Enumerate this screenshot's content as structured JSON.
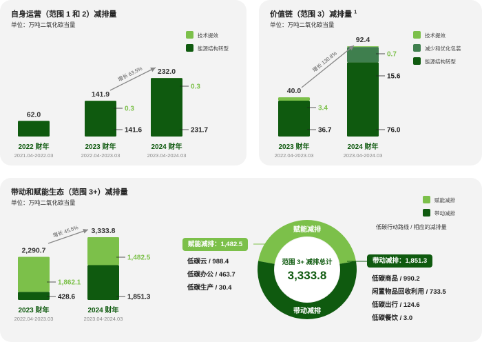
{
  "colors": {
    "dark_green": "#0f5a0f",
    "mid_green": "#3f7f4e",
    "light_green": "#7cc04a",
    "card_bg": "#f3f3f3",
    "arrow": "#888888"
  },
  "card1": {
    "title": "自身运营（范围 1 和 2）减排量",
    "unit": "单位：万吨二氧化碳当量",
    "legend": [
      {
        "label": "技术提效",
        "color": "#7cc04a"
      },
      {
        "label": "能源结构转型",
        "color": "#0f5a0f"
      }
    ],
    "growth_label": "增长 63.5%"
  },
  "card2": {
    "title": "价值链（范围 3）减排量",
    "title_sup": "1",
    "unit": "单位：万吨二氧化碳当量",
    "legend": [
      {
        "label": "技术提效",
        "color": "#7cc04a"
      },
      {
        "label": "减少和优化包装",
        "color": "#3f7f4e"
      },
      {
        "label": "能源结构转型",
        "color": "#0f5a0f"
      }
    ],
    "growth_label": "增长 130.8%"
  },
  "card3": {
    "title": "带动和赋能生态（范围 3+）减排量",
    "unit": "单位：万吨二氧化碳当量",
    "legend": [
      {
        "label": "赋能减排",
        "color": "#7cc04a"
      },
      {
        "label": "带动减排",
        "color": "#0f5a0f"
      }
    ],
    "growth_label": "增长 45.5%",
    "note": "低碳行动路线 / 相应的减排量",
    "donut": {
      "center_title": "范围 3+ 减排总计",
      "center_value": "3,333.8",
      "top_label": "赋能减排",
      "bottom_label": "带动减排",
      "left_tag": "赋能减排：1,482.5",
      "right_tag": "带动减排：1,851.3",
      "left_items": [
        "低碳云 / 988.4",
        "低碳办公 / 463.7",
        "低碳生产 / 30.4"
      ],
      "right_items": [
        "低碳商品 / 990.2",
        "闲置物品回收利用 / 733.5",
        "低碳出行 / 124.6",
        "低碳餐饮 / 3.0"
      ]
    }
  },
  "chart_data": [
    {
      "type": "bar",
      "stacked": true,
      "title": "自身运营（范围 1 和 2）减排量",
      "unit": "万吨二氧化碳当量",
      "categories": [
        "2022 财年",
        "2023 财年",
        "2024 财年"
      ],
      "category_periods": [
        "2021.04-2022.03",
        "2022.04-2023.03",
        "2023.04-2024.03"
      ],
      "series": [
        {
          "name": "能源结构转型",
          "color": "#0f5a0f",
          "values": [
            62.0,
            141.6,
            231.7
          ],
          "labels": [
            "",
            "141.6",
            "231.7"
          ]
        },
        {
          "name": "技术提效",
          "color": "#7cc04a",
          "values": [
            0,
            0.3,
            0.3
          ],
          "labels": [
            "",
            "0.3",
            "0.3"
          ]
        }
      ],
      "totals": [
        62.0,
        141.9,
        232.0
      ],
      "total_labels": [
        "62.0",
        "141.9",
        "232.0"
      ],
      "annotation": "增长 63.5%",
      "ylim": [
        0,
        232.0
      ]
    },
    {
      "type": "bar",
      "stacked": true,
      "title": "价值链（范围 3）减排量",
      "unit": "万吨二氧化碳当量",
      "categories": [
        "2023 财年",
        "2024 财年"
      ],
      "category_periods": [
        "2022.04-2023.03",
        "2023.04-2024.03"
      ],
      "series": [
        {
          "name": "能源结构转型",
          "color": "#0f5a0f",
          "values": [
            36.7,
            76.0
          ],
          "labels": [
            "36.7",
            "76.0"
          ]
        },
        {
          "name": "减少和优化包装",
          "color": "#3f7f4e",
          "values": [
            0,
            15.6
          ],
          "labels": [
            "",
            "15.6"
          ]
        },
        {
          "name": "技术提效",
          "color": "#7cc04a",
          "values": [
            3.4,
            0.7
          ],
          "labels": [
            "3.4",
            "0.7"
          ]
        }
      ],
      "totals": [
        40.0,
        92.4
      ],
      "total_labels": [
        "40.0",
        "92.4"
      ],
      "annotation": "增长 130.8%",
      "ylim": [
        0,
        92.4
      ]
    },
    {
      "type": "bar",
      "stacked": true,
      "title": "带动和赋能生态（范围 3+）减排量",
      "unit": "万吨二氧化碳当量",
      "categories": [
        "2023 财年",
        "2024 财年"
      ],
      "category_periods": [
        "2022.04-2023.03",
        "2023.04-2024.03"
      ],
      "series": [
        {
          "name": "带动减排",
          "color": "#0f5a0f",
          "values": [
            428.6,
            1851.3
          ],
          "labels": [
            "428.6",
            "1,851.3"
          ]
        },
        {
          "name": "赋能减排",
          "color": "#7cc04a",
          "values": [
            1862.1,
            1482.5
          ],
          "labels": [
            "1,862.1",
            "1,482.5"
          ]
        }
      ],
      "totals": [
        2290.7,
        3333.8
      ],
      "total_labels": [
        "2,290.7",
        "3,333.8"
      ],
      "annotation": "增长 45.5%",
      "ylim": [
        0,
        3333.8
      ]
    },
    {
      "type": "pie",
      "donut": true,
      "title": "范围 3+ 减排总计",
      "categories": [
        "赋能减排",
        "带动减排"
      ],
      "values": [
        1482.5,
        1851.3
      ],
      "colors": [
        "#7cc04a",
        "#0f5a0f"
      ],
      "total": 3333.8
    }
  ]
}
